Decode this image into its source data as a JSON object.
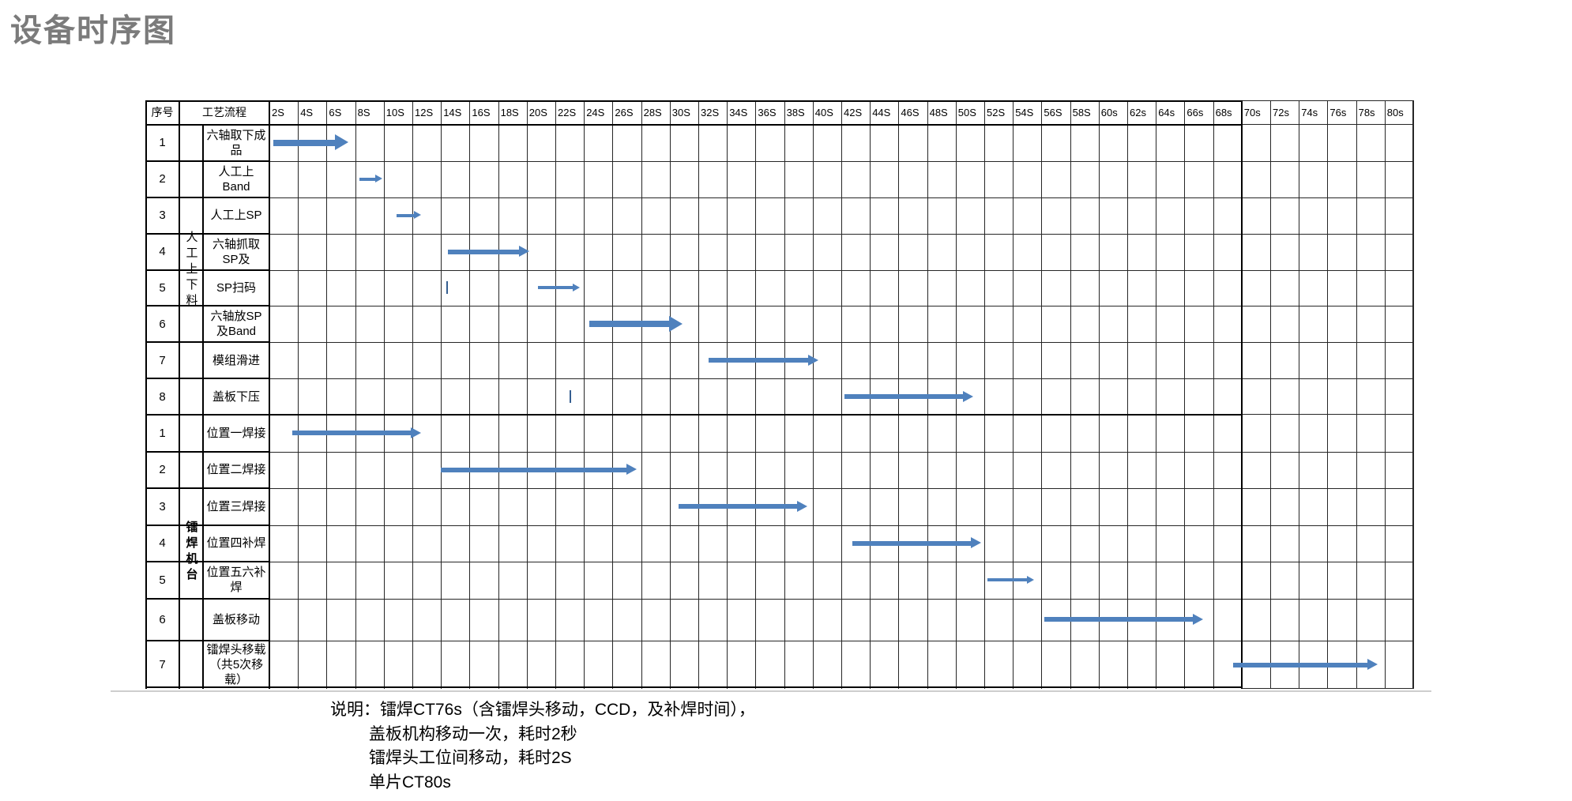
{
  "title": "设备时序图",
  "colors": {
    "arrow_blue": "#4f81bd",
    "stray_tick": "#365f91",
    "title_gray": "#7b7b7b",
    "grid_line": "#262626",
    "bold_line": "#000000"
  },
  "notes": [
    "说明：镭焊CT76s（含镭焊头移动，CCD，及补焊时间），",
    "盖板机构移动一次，耗时2秒",
    "镭焊头工位间移动，耗时2S",
    "单片CT80s"
  ],
  "chart_data": {
    "type": "bar",
    "subtype": "gantt-timing-diagram",
    "title": "设备时序图",
    "x_unit": "seconds",
    "x_min": 0,
    "x_max": 80,
    "x_tick_step_s": 2,
    "grid": true,
    "header": {
      "seq": "序号",
      "process": "工艺流程"
    },
    "x_tick_labels": [
      "2S",
      "4S",
      "6S",
      "8S",
      "10S",
      "12S",
      "14S",
      "16S",
      "18S",
      "20S",
      "22S",
      "24S",
      "26S",
      "28S",
      "30S",
      "32S",
      "34S",
      "36S",
      "38S",
      "40S",
      "42S",
      "44S",
      "46S",
      "48S",
      "50S",
      "52S",
      "54S",
      "56S",
      "58S",
      "60s",
      "62s",
      "64s",
      "66s",
      "68s",
      "70s",
      "72s",
      "74s",
      "76s",
      "78s",
      "80s"
    ],
    "groups": [
      {
        "label": "人工上下料",
        "bold_label": false,
        "rows": [
          {
            "num": "1",
            "name": "六轴取下成品",
            "start_s": 0.3,
            "end_s": 5.5,
            "size": "large"
          },
          {
            "num": "2",
            "name": "人工上Band",
            "start_s": 6.3,
            "end_s": 7.9,
            "size": "small"
          },
          {
            "num": "3",
            "name": "人工上SP",
            "start_s": 8.9,
            "end_s": 10.6,
            "size": "small"
          },
          {
            "num": "4",
            "name": "六轴抓取SP及",
            "start_s": 12.5,
            "end_s": 18.2,
            "size": "medium"
          },
          {
            "num": "5",
            "name": "SP扫码",
            "start_s": 18.8,
            "end_s": 21.7,
            "size": "small"
          },
          {
            "num": "6",
            "name": "六轴放SP及Band",
            "start_s": 22.4,
            "end_s": 28.9,
            "size": "large"
          },
          {
            "num": "7",
            "name": "模组滑进",
            "start_s": 30.7,
            "end_s": 38.4,
            "size": "medium"
          },
          {
            "num": "8",
            "name": "盖板下压",
            "start_s": 40.2,
            "end_s": 49.2,
            "size": "medium"
          }
        ]
      },
      {
        "label": "镭焊机台",
        "bold_label": true,
        "rows": [
          {
            "num": "1",
            "name": "位置一焊接",
            "start_s": 1.6,
            "end_s": 10.6,
            "size": "medium"
          },
          {
            "num": "2",
            "name": "位置二焊接",
            "start_s": 12.0,
            "end_s": 25.7,
            "size": "medium"
          },
          {
            "num": "3",
            "name": "位置三焊接",
            "start_s": 28.6,
            "end_s": 37.6,
            "size": "medium"
          },
          {
            "num": "4",
            "name": "位置四补焊",
            "start_s": 40.8,
            "end_s": 49.8,
            "size": "medium"
          },
          {
            "num": "5",
            "name": "位置五六补焊",
            "start_s": 50.2,
            "end_s": 53.5,
            "size": "small"
          },
          {
            "num": "6",
            "name": "盖板移动",
            "start_s": 54.2,
            "end_s": 65.3,
            "size": "medium"
          },
          {
            "num": "7",
            "name": "镭焊头移载（共5次移载）",
            "start_s": 67.4,
            "end_s": 77.5,
            "size": "medium"
          }
        ]
      }
    ],
    "stray_marks": [
      {
        "group": 0,
        "row": 4,
        "t_s": 12.4
      },
      {
        "group": 0,
        "row": 7,
        "t_s": 21.0
      }
    ]
  }
}
